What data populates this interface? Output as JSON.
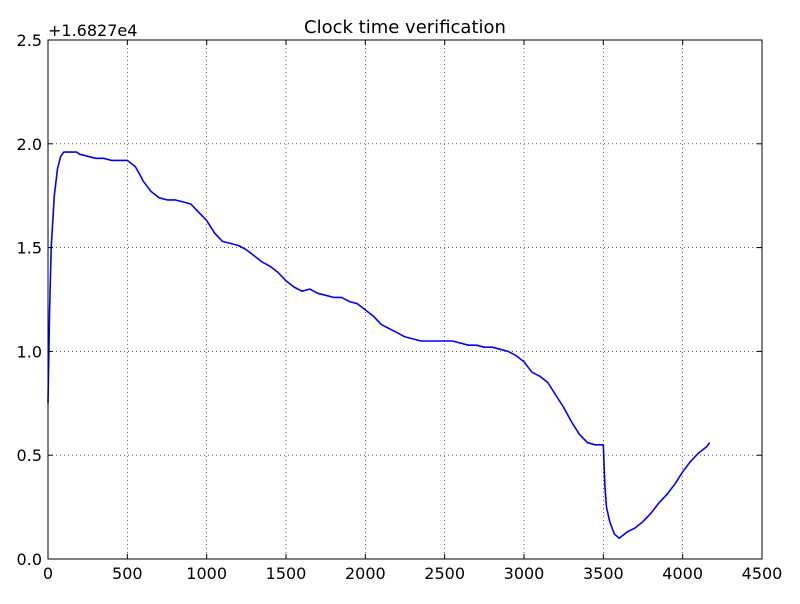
{
  "chart_data": {
    "type": "line",
    "title": "Clock time verification",
    "xlabel": "",
    "ylabel": "",
    "offset_label": "+1.6827e4",
    "xlim": [
      0,
      4500
    ],
    "ylim": [
      0,
      2.5
    ],
    "xticks": [
      0,
      500,
      1000,
      1500,
      2000,
      2500,
      3000,
      3500,
      4000,
      4500
    ],
    "xtick_labels": [
      "0",
      "500",
      "1000",
      "1500",
      "2000",
      "2500",
      "3000",
      "3500",
      "4000",
      "4500"
    ],
    "yticks": [
      0.0,
      0.5,
      1.0,
      1.5,
      2.0,
      2.5
    ],
    "ytick_labels": [
      "0.0",
      "0.5",
      "1.0",
      "1.5",
      "2.0",
      "2.5"
    ],
    "grid": true,
    "legend": "none",
    "series": [
      {
        "color": "#0000ff",
        "x": [
          0,
          10,
          20,
          40,
          60,
          80,
          100,
          120,
          150,
          180,
          200,
          250,
          300,
          350,
          400,
          450,
          500,
          550,
          580,
          600,
          650,
          700,
          750,
          800,
          850,
          900,
          950,
          1000,
          1050,
          1100,
          1150,
          1200,
          1250,
          1300,
          1350,
          1400,
          1450,
          1500,
          1550,
          1600,
          1650,
          1700,
          1750,
          1800,
          1850,
          1900,
          1950,
          2000,
          2050,
          2100,
          2150,
          2200,
          2250,
          2300,
          2350,
          2400,
          2450,
          2500,
          2550,
          2600,
          2650,
          2700,
          2750,
          2800,
          2850,
          2900,
          2950,
          3000,
          3050,
          3100,
          3150,
          3200,
          3250,
          3300,
          3350,
          3400,
          3450,
          3500,
          3510,
          3520,
          3540,
          3570,
          3600,
          3650,
          3700,
          3750,
          3800,
          3850,
          3900,
          3950,
          4000,
          4050,
          4100,
          4150,
          4170
        ],
        "y": [
          0.75,
          1.2,
          1.5,
          1.75,
          1.88,
          1.94,
          1.96,
          1.96,
          1.96,
          1.96,
          1.95,
          1.94,
          1.93,
          1.93,
          1.92,
          1.92,
          1.92,
          1.89,
          1.85,
          1.82,
          1.77,
          1.74,
          1.73,
          1.73,
          1.72,
          1.71,
          1.67,
          1.63,
          1.57,
          1.53,
          1.52,
          1.51,
          1.49,
          1.46,
          1.43,
          1.41,
          1.38,
          1.34,
          1.31,
          1.29,
          1.3,
          1.28,
          1.27,
          1.26,
          1.26,
          1.24,
          1.23,
          1.2,
          1.17,
          1.13,
          1.11,
          1.09,
          1.07,
          1.06,
          1.05,
          1.05,
          1.05,
          1.05,
          1.05,
          1.04,
          1.03,
          1.03,
          1.02,
          1.02,
          1.01,
          1.0,
          0.98,
          0.95,
          0.9,
          0.88,
          0.85,
          0.79,
          0.73,
          0.66,
          0.6,
          0.56,
          0.55,
          0.55,
          0.35,
          0.25,
          0.18,
          0.12,
          0.1,
          0.13,
          0.15,
          0.18,
          0.22,
          0.27,
          0.31,
          0.36,
          0.42,
          0.47,
          0.51,
          0.54,
          0.56
        ]
      }
    ]
  }
}
